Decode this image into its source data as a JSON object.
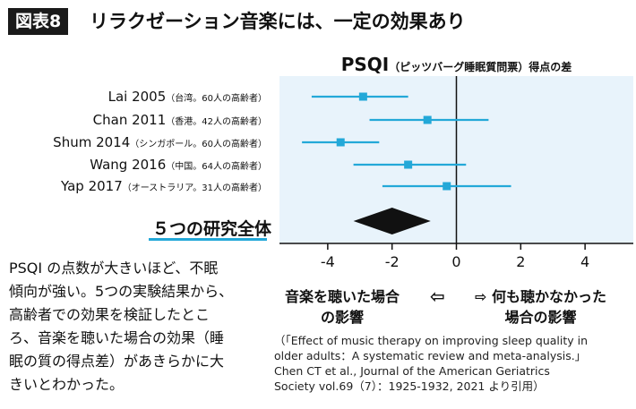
{
  "figure": {
    "badge": "図表8",
    "title": "リラクゼーション音楽には、一定の効果あり"
  },
  "chart_data": {
    "type": "forest",
    "title": "PSQI",
    "title_paren": "（ピッツバーグ睡眠質問票）得点の差",
    "xlim": [
      -5.5,
      5.5
    ],
    "xticks": [
      -4,
      -2,
      0,
      2,
      4
    ],
    "tick_labels": [
      "-4",
      "-2",
      "0",
      "2",
      "4"
    ],
    "colors": {
      "background": "#e8f3fb",
      "marks": "#23a8d8",
      "pooled": "#111111"
    },
    "studies": [
      {
        "name": "Lai 2005",
        "detail": "（台湾。60人の高齢者）",
        "estimate": -2.9,
        "ci_low": -4.5,
        "ci_high": -1.5
      },
      {
        "name": "Chan 2011",
        "detail": "（香港。42人の高齢者）",
        "estimate": -0.9,
        "ci_low": -2.7,
        "ci_high": 1.0
      },
      {
        "name": "Shum 2014",
        "detail": "（シンガポール。60人の高齢者）",
        "estimate": -3.6,
        "ci_low": -4.8,
        "ci_high": -2.4
      },
      {
        "name": "Wang 2016",
        "detail": "（中国。64人の高齢者）",
        "estimate": -1.5,
        "ci_low": -3.2,
        "ci_high": 0.3
      },
      {
        "name": "Yap 2017",
        "detail": "（オーストラリア。31人の高齢者）",
        "estimate": -0.3,
        "ci_low": -2.3,
        "ci_high": 1.7
      }
    ],
    "pooled": {
      "label": "５つの研究全体",
      "estimate": -2.0,
      "ci_low": -3.2,
      "ci_high": -0.8
    },
    "axis_left_label": [
      "音楽を聴いた場合",
      "の影響"
    ],
    "axis_right_label": [
      "何も聴かなかった",
      "場合の影響"
    ],
    "arrow_left": "⇦",
    "arrow_right": "⇨"
  },
  "body_text": [
    "PSQI の点数が大きいほど、不眠",
    "傾向が強い。5つの実験結果から、",
    "高齢者での効果を検証したとこ",
    "ろ、音楽を聴いた場合の効果（睡",
    "眠の質の得点差）があきらかに大",
    "きいとわかった。"
  ],
  "citation": [
    "（「Effect of music therapy on improving sleep quality in",
    "older adults：A systematic review and meta-analysis.」",
    "Chen CT et al., Journal of the American Geriatrics",
    "Society vol.69（7）：1925-1932, 2021 より引用）"
  ]
}
